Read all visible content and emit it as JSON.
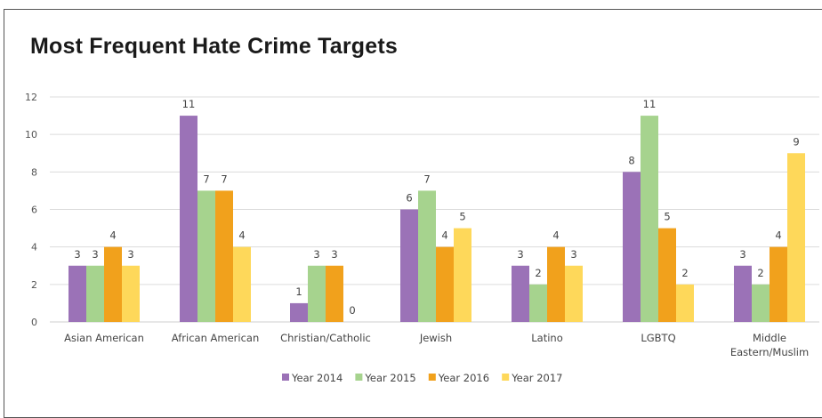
{
  "chart_data": {
    "type": "bar",
    "title": "Most Frequent Hate Crime Targets",
    "xlabel": "",
    "ylabel": "",
    "ylim": [
      0,
      12
    ],
    "yticks": [
      0,
      2,
      4,
      6,
      8,
      10,
      12
    ],
    "grid": true,
    "legend_position": "bottom",
    "categories": [
      "Asian American",
      "African American",
      "Christian/Catholic",
      "Jewish",
      "Latino",
      "LGBTQ",
      "Middle Eastern/Muslim"
    ],
    "series": [
      {
        "name": "Year 2014",
        "color": "#9b72b7",
        "values": [
          3,
          11,
          1,
          6,
          3,
          8,
          3
        ]
      },
      {
        "name": "Year 2015",
        "color": "#a6d38e",
        "values": [
          3,
          7,
          3,
          7,
          2,
          11,
          2
        ]
      },
      {
        "name": "Year 2016",
        "color": "#f1a11c",
        "values": [
          4,
          7,
          3,
          4,
          4,
          5,
          4
        ]
      },
      {
        "name": "Year 2017",
        "color": "#fed85a",
        "values": [
          3,
          4,
          0,
          5,
          3,
          2,
          9
        ]
      }
    ]
  }
}
